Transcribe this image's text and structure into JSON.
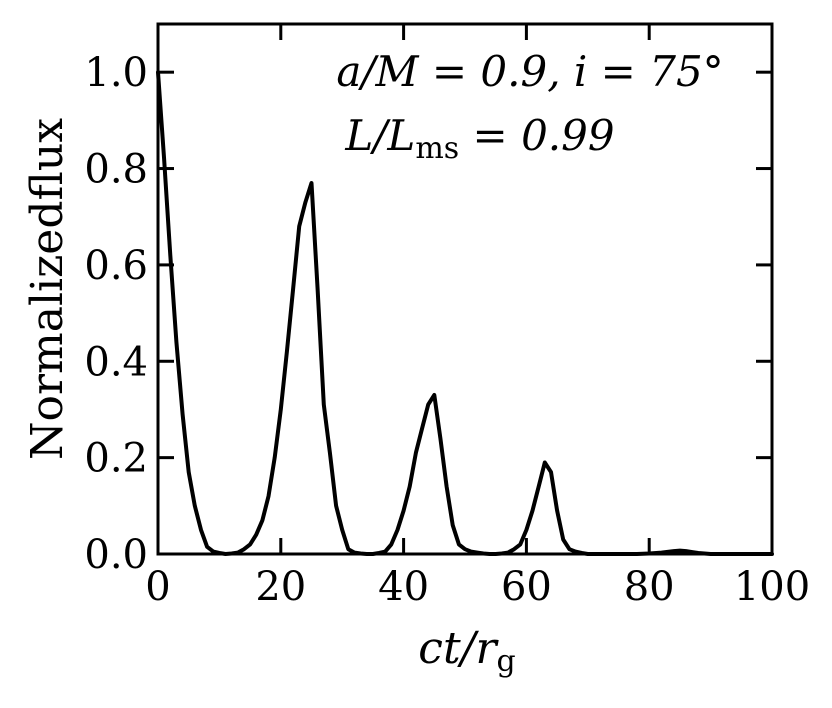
{
  "chart_data": {
    "type": "line",
    "xlabel": "ct/r_g",
    "ylabel": "Normalizedflux",
    "xlim": [
      0,
      100
    ],
    "ylim": [
      0,
      1.1
    ],
    "x_ticks": [
      "0",
      "20",
      "40",
      "60",
      "80",
      "100"
    ],
    "y_ticks": [
      "0.0",
      "0.2",
      "0.4",
      "0.6",
      "0.8",
      "1.0"
    ],
    "grid": false,
    "annotations": [
      "a/M = 0.9,  i = 75°",
      "L/L_ms = 0.99"
    ],
    "series": [
      {
        "color": "#000000",
        "x": [
          0,
          1,
          2,
          3,
          4,
          5,
          6,
          7,
          8,
          9,
          10,
          11,
          12,
          13,
          14,
          15,
          16,
          17,
          18,
          19,
          20,
          21,
          22,
          23,
          24,
          25,
          26,
          27,
          28,
          29,
          30,
          31,
          32,
          33,
          34,
          35,
          36,
          37,
          38,
          39,
          40,
          41,
          42,
          43,
          44,
          45,
          46,
          47,
          48,
          49,
          50,
          51,
          52,
          53,
          54,
          55,
          56,
          57,
          58,
          59,
          60,
          61,
          62,
          63,
          64,
          65,
          66,
          67,
          68,
          69,
          70,
          71,
          72,
          73,
          74,
          75,
          76,
          78,
          80,
          82,
          84,
          85,
          86,
          87,
          88,
          90,
          95,
          100
        ],
        "y": [
          1.0,
          0.82,
          0.62,
          0.44,
          0.29,
          0.17,
          0.1,
          0.05,
          0.015,
          0.005,
          0.002,
          0.0,
          0.001,
          0.003,
          0.01,
          0.02,
          0.04,
          0.07,
          0.12,
          0.2,
          0.3,
          0.42,
          0.55,
          0.68,
          0.73,
          0.77,
          0.55,
          0.31,
          0.21,
          0.1,
          0.05,
          0.01,
          0.003,
          0.001,
          0.0,
          0.0,
          0.002,
          0.005,
          0.02,
          0.05,
          0.09,
          0.14,
          0.21,
          0.26,
          0.31,
          0.33,
          0.24,
          0.14,
          0.06,
          0.02,
          0.01,
          0.005,
          0.003,
          0.001,
          0.0,
          0.0,
          0.001,
          0.003,
          0.01,
          0.02,
          0.05,
          0.09,
          0.14,
          0.19,
          0.17,
          0.09,
          0.03,
          0.01,
          0.005,
          0.002,
          0.0,
          0.0,
          0.0,
          0.0,
          0.0,
          0.0,
          0.0,
          0.0,
          0.001,
          0.003,
          0.006,
          0.007,
          0.006,
          0.004,
          0.002,
          0.0,
          0.0,
          0.0
        ]
      }
    ]
  }
}
